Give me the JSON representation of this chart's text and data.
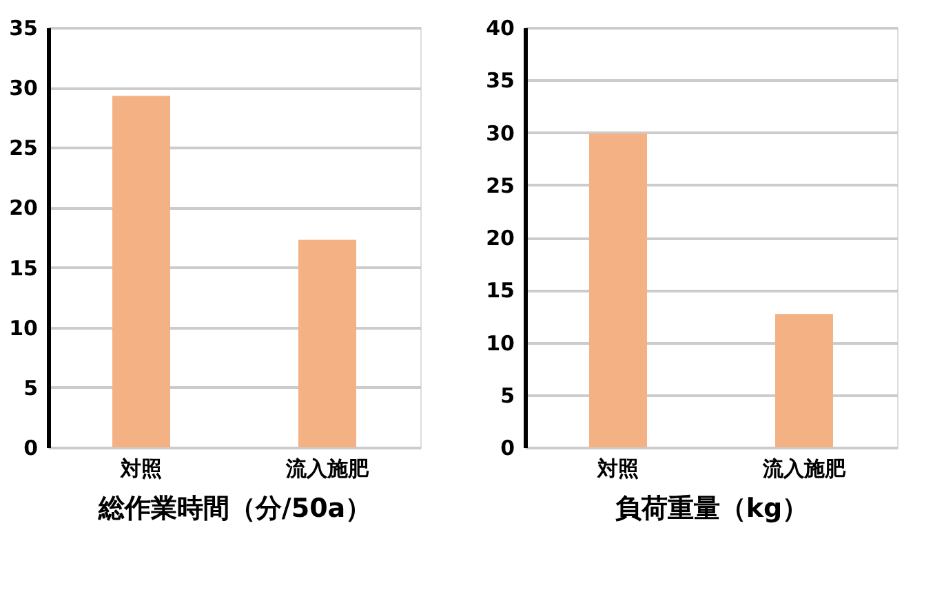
{
  "chart_data": [
    {
      "type": "bar",
      "categories": [
        "対照",
        "流入施肥"
      ],
      "values": [
        29.3,
        17.3
      ],
      "color": "#f4b183",
      "xlabel": "総作業時間（分/50a）",
      "ylim": [
        0,
        35
      ],
      "yticks": [
        0,
        5,
        10,
        15,
        20,
        25,
        30,
        35
      ],
      "grid": "y"
    },
    {
      "type": "bar",
      "categories": [
        "対照",
        "流入施肥"
      ],
      "values": [
        29.9,
        12.7
      ],
      "color": "#f4b183",
      "xlabel": "負荷重量（kg）",
      "ylim": [
        0,
        40
      ],
      "yticks": [
        0,
        5,
        10,
        15,
        20,
        25,
        30,
        35,
        40
      ],
      "grid": "y"
    }
  ]
}
